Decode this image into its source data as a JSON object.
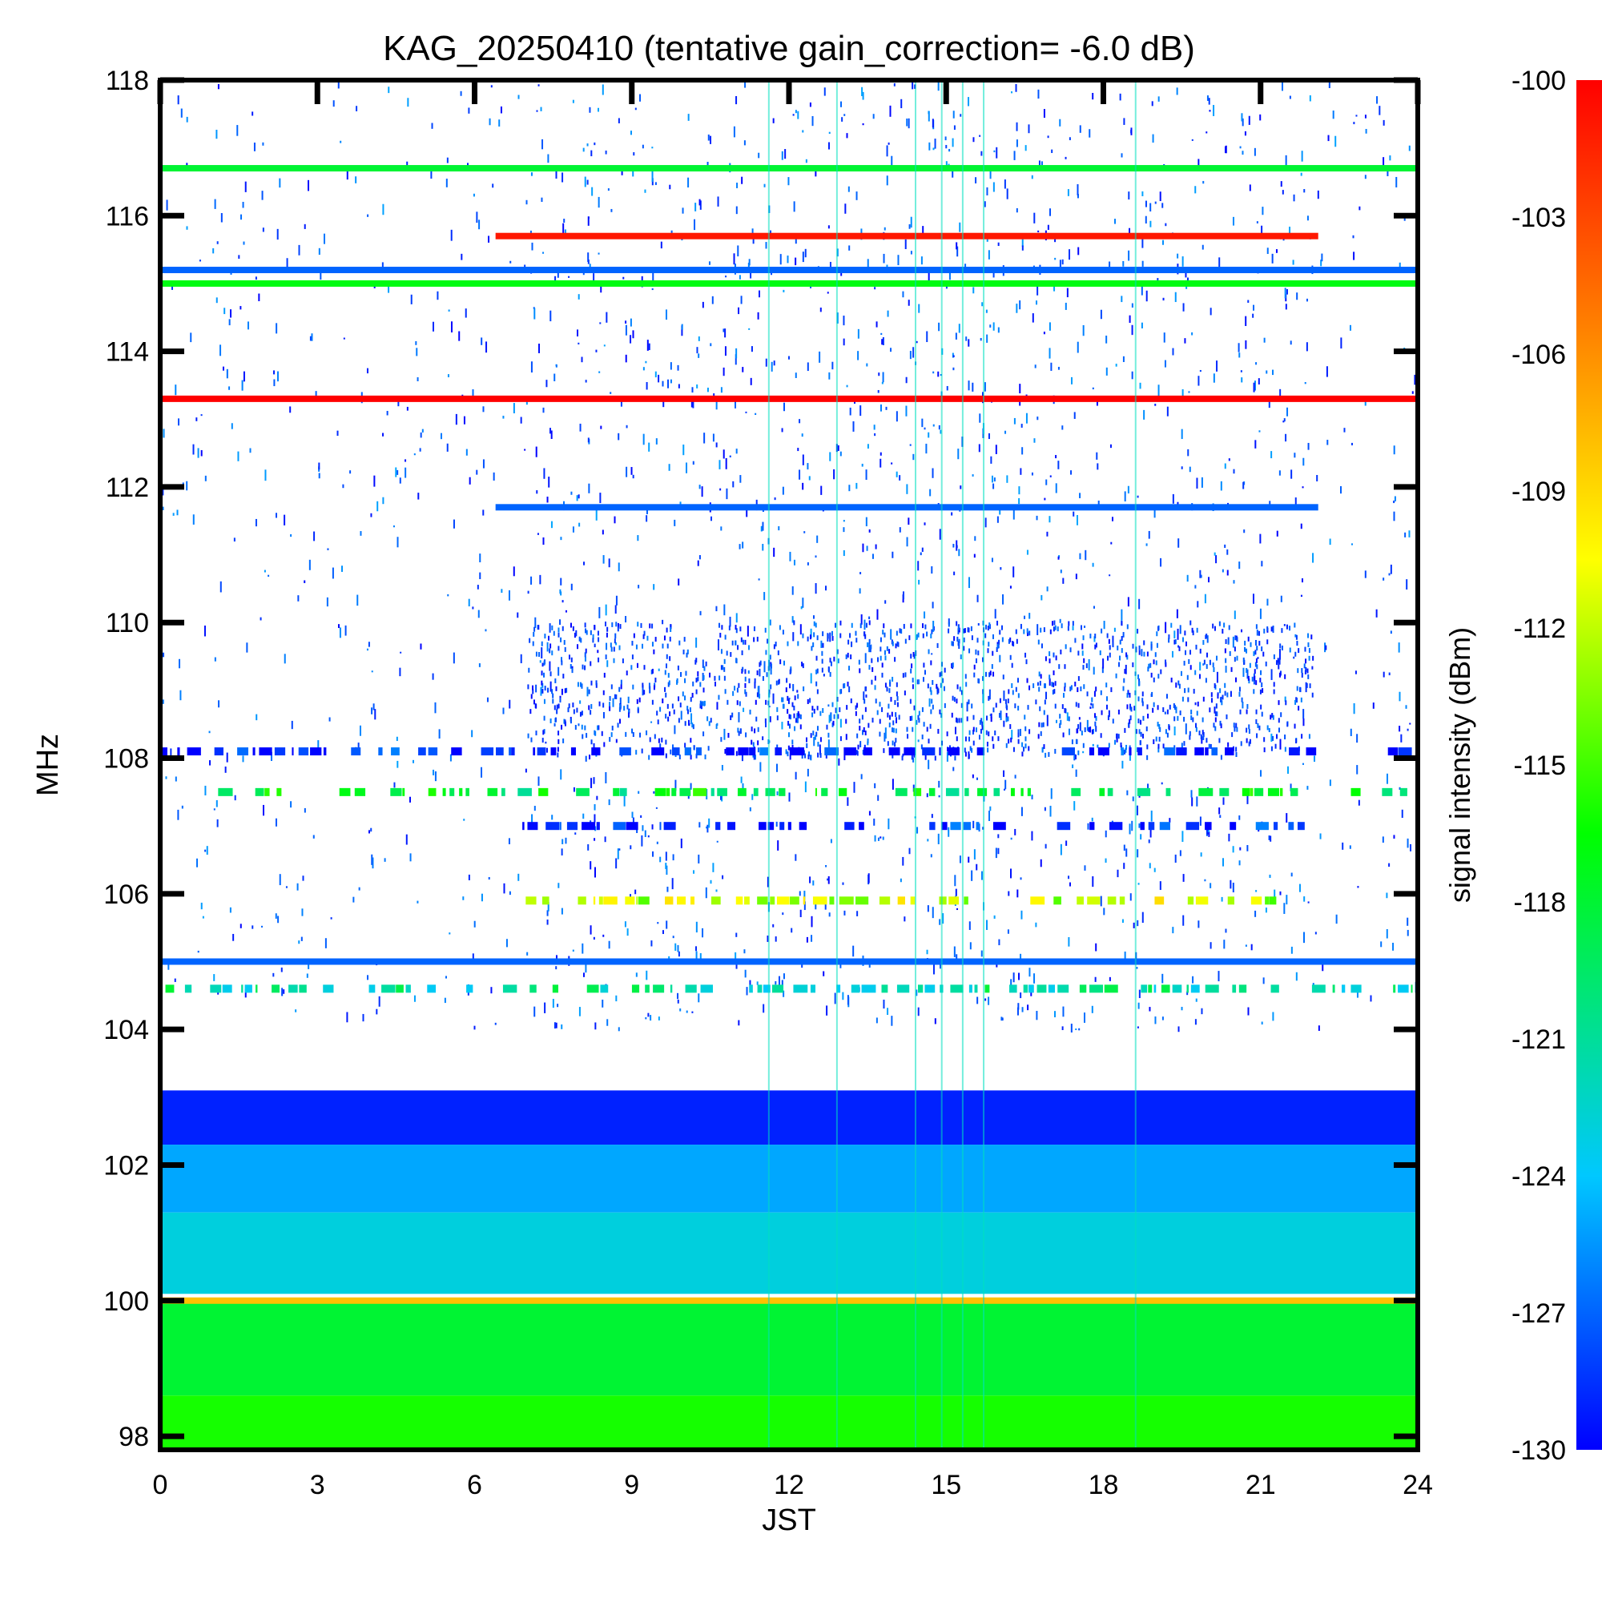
{
  "chart_data": {
    "type": "heatmap",
    "title": "KAG_20250410 (tentative gain_correction= -6.0 dB)",
    "xlabel": "JST",
    "ylabel": "MHz",
    "colorbar_label": "signal intensity (dBm)",
    "xlim": [
      0,
      24
    ],
    "ylim": [
      97.8,
      118
    ],
    "x_ticks": [
      0,
      3,
      6,
      9,
      12,
      15,
      18,
      21,
      24
    ],
    "y_ticks": [
      98,
      100,
      102,
      104,
      106,
      108,
      110,
      112,
      114,
      116,
      118
    ],
    "colorbar_range": [
      -130,
      -100
    ],
    "colorbar_ticks": [
      -100,
      -103,
      -106,
      -109,
      -112,
      -115,
      -118,
      -121,
      -124,
      -127,
      -130
    ],
    "colormap": [
      "#0000ff",
      "#00c8ff",
      "#00ff00",
      "#ffff00",
      "#ff8000",
      "#ff0000"
    ],
    "continuous_lines": [
      {
        "freq_mhz": 116.7,
        "x_range": [
          0,
          24
        ],
        "dbm": -118
      },
      {
        "freq_mhz": 115.7,
        "x_range": [
          6.4,
          22.1
        ],
        "dbm": -101
      },
      {
        "freq_mhz": 115.2,
        "x_range": [
          0,
          24
        ],
        "dbm": -127
      },
      {
        "freq_mhz": 115.0,
        "x_range": [
          0,
          24
        ],
        "dbm": -117
      },
      {
        "freq_mhz": 113.3,
        "x_range": [
          0,
          24
        ],
        "dbm": -100
      },
      {
        "freq_mhz": 111.7,
        "x_range": [
          6.4,
          22.1
        ],
        "dbm": -127
      },
      {
        "freq_mhz": 105.0,
        "x_range": [
          0,
          24
        ],
        "dbm": -127
      },
      {
        "freq_mhz": 100.0,
        "x_range": [
          0,
          24
        ],
        "dbm": -108
      }
    ],
    "intermittent_lines": [
      {
        "freq_mhz": 108.1,
        "x_range": [
          0,
          24
        ],
        "dbm": -129
      },
      {
        "freq_mhz": 107.5,
        "x_range": [
          0.2,
          23.8
        ],
        "dbm": -118
      },
      {
        "freq_mhz": 107.0,
        "x_range": [
          6.8,
          22.0
        ],
        "dbm": -129
      },
      {
        "freq_mhz": 105.9,
        "x_range": [
          6.8,
          21.3
        ],
        "dbm": -112
      },
      {
        "freq_mhz": 104.6,
        "x_range": [
          0.1,
          23.9
        ],
        "dbm": -121
      }
    ],
    "background_bands": [
      {
        "freq_range": [
          102.3,
          103.1
        ],
        "dbm": -129
      },
      {
        "freq_range": [
          101.3,
          102.3
        ],
        "dbm": -125
      },
      {
        "freq_range": [
          100.1,
          101.3
        ],
        "dbm": -123
      },
      {
        "freq_range": [
          98.6,
          100.0
        ],
        "dbm": -118
      },
      {
        "freq_range": [
          97.8,
          98.6
        ],
        "dbm": -116
      }
    ]
  }
}
